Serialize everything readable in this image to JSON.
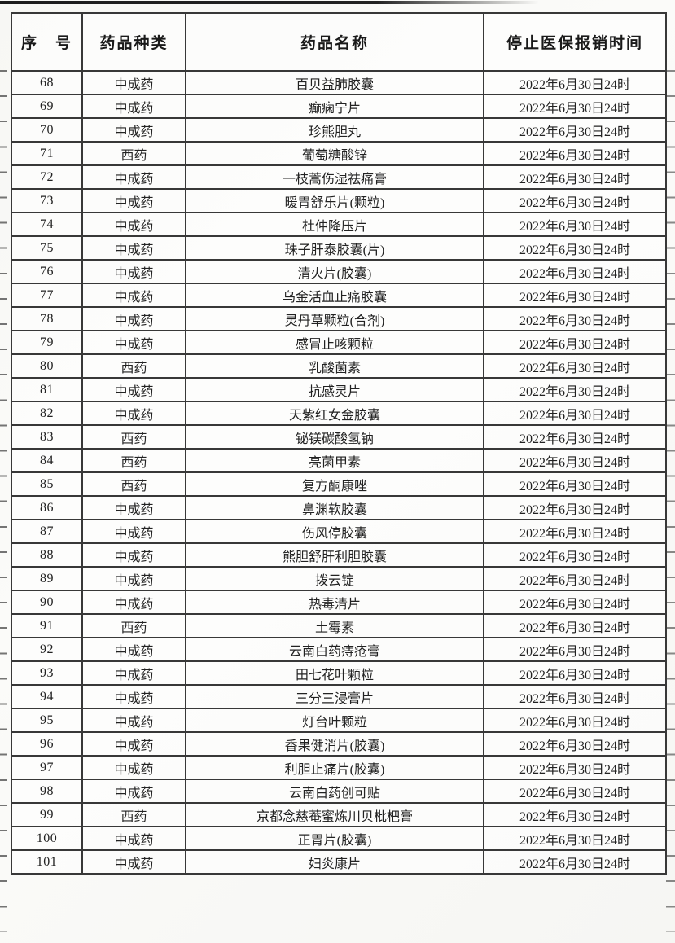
{
  "table": {
    "columns": [
      "序　号",
      "药品种类",
      "药品名称",
      "停止医保报销时间"
    ],
    "rows": [
      {
        "no": "68",
        "category": "中成药",
        "name": "百贝益肺胶囊",
        "stop_time": "2022年6月30日24时"
      },
      {
        "no": "69",
        "category": "中成药",
        "name": "癫痫宁片",
        "stop_time": "2022年6月30日24时"
      },
      {
        "no": "70",
        "category": "中成药",
        "name": "珍熊胆丸",
        "stop_time": "2022年6月30日24时"
      },
      {
        "no": "71",
        "category": "西药",
        "name": "葡萄糖酸锌",
        "stop_time": "2022年6月30日24时"
      },
      {
        "no": "72",
        "category": "中成药",
        "name": "一枝蒿伤湿祛痛膏",
        "stop_time": "2022年6月30日24时"
      },
      {
        "no": "73",
        "category": "中成药",
        "name": "暖胃舒乐片(颗粒)",
        "stop_time": "2022年6月30日24时"
      },
      {
        "no": "74",
        "category": "中成药",
        "name": "杜仲降压片",
        "stop_time": "2022年6月30日24时"
      },
      {
        "no": "75",
        "category": "中成药",
        "name": "珠子肝泰胶囊(片)",
        "stop_time": "2022年6月30日24时"
      },
      {
        "no": "76",
        "category": "中成药",
        "name": "清火片(胶囊)",
        "stop_time": "2022年6月30日24时"
      },
      {
        "no": "77",
        "category": "中成药",
        "name": "乌金活血止痛胶囊",
        "stop_time": "2022年6月30日24时"
      },
      {
        "no": "78",
        "category": "中成药",
        "name": "灵丹草颗粒(合剂)",
        "stop_time": "2022年6月30日24时"
      },
      {
        "no": "79",
        "category": "中成药",
        "name": "感冒止咳颗粒",
        "stop_time": "2022年6月30日24时"
      },
      {
        "no": "80",
        "category": "西药",
        "name": "乳酸菌素",
        "stop_time": "2022年6月30日24时"
      },
      {
        "no": "81",
        "category": "中成药",
        "name": "抗感灵片",
        "stop_time": "2022年6月30日24时"
      },
      {
        "no": "82",
        "category": "中成药",
        "name": "天紫红女金胶囊",
        "stop_time": "2022年6月30日24时"
      },
      {
        "no": "83",
        "category": "西药",
        "name": "铋镁碳酸氢钠",
        "stop_time": "2022年6月30日24时"
      },
      {
        "no": "84",
        "category": "西药",
        "name": "亮菌甲素",
        "stop_time": "2022年6月30日24时"
      },
      {
        "no": "85",
        "category": "西药",
        "name": "复方酮康唑",
        "stop_time": "2022年6月30日24时"
      },
      {
        "no": "86",
        "category": "中成药",
        "name": "鼻渊软胶囊",
        "stop_time": "2022年6月30日24时"
      },
      {
        "no": "87",
        "category": "中成药",
        "name": "伤风停胶囊",
        "stop_time": "2022年6月30日24时"
      },
      {
        "no": "88",
        "category": "中成药",
        "name": "熊胆舒肝利胆胶囊",
        "stop_time": "2022年6月30日24时"
      },
      {
        "no": "89",
        "category": "中成药",
        "name": "拨云锭",
        "stop_time": "2022年6月30日24时"
      },
      {
        "no": "90",
        "category": "中成药",
        "name": "热毒清片",
        "stop_time": "2022年6月30日24时"
      },
      {
        "no": "91",
        "category": "西药",
        "name": "土霉素",
        "stop_time": "2022年6月30日24时"
      },
      {
        "no": "92",
        "category": "中成药",
        "name": "云南白药痔疮膏",
        "stop_time": "2022年6月30日24时"
      },
      {
        "no": "93",
        "category": "中成药",
        "name": "田七花叶颗粒",
        "stop_time": "2022年6月30日24时"
      },
      {
        "no": "94",
        "category": "中成药",
        "name": "三分三浸膏片",
        "stop_time": "2022年6月30日24时"
      },
      {
        "no": "95",
        "category": "中成药",
        "name": "灯台叶颗粒",
        "stop_time": "2022年6月30日24时"
      },
      {
        "no": "96",
        "category": "中成药",
        "name": "香果健消片(胶囊)",
        "stop_time": "2022年6月30日24时"
      },
      {
        "no": "97",
        "category": "中成药",
        "name": "利胆止痛片(胶囊)",
        "stop_time": "2022年6月30日24时"
      },
      {
        "no": "98",
        "category": "中成药",
        "name": "云南白药创可贴",
        "stop_time": "2022年6月30日24时"
      },
      {
        "no": "99",
        "category": "西药",
        "name": "京都念慈菴蜜炼川贝枇杷膏",
        "stop_time": "2022年6月30日24时"
      },
      {
        "no": "100",
        "category": "中成药",
        "name": "正胃片(胶囊)",
        "stop_time": "2022年6月30日24时"
      },
      {
        "no": "101",
        "category": "中成药",
        "name": "妇炎康片",
        "stop_time": "2022年6月30日24时"
      }
    ]
  }
}
